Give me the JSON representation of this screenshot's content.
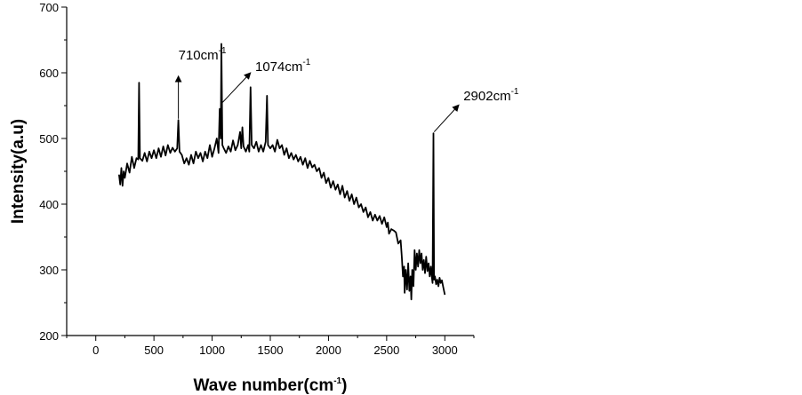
{
  "chart_data": {
    "type": "line",
    "title": "",
    "xlabel": "Wave number(cm",
    "xlabel_sup": "-1",
    "xlabel_tail": ")",
    "ylabel": "Intensity(a.u)",
    "xlim": [
      -250,
      3250
    ],
    "ylim": [
      200,
      700
    ],
    "xticks": [
      0,
      500,
      1000,
      1500,
      2000,
      2500,
      3000
    ],
    "xtick_labels": [
      "0",
      "500",
      "1000",
      "1500",
      "2000",
      "2500",
      "3000"
    ],
    "yticks": [
      200,
      300,
      400,
      500,
      600,
      700
    ],
    "ytick_labels": [
      "200",
      "300",
      "400",
      "500",
      "600",
      "700"
    ],
    "grid": false,
    "legend": "none",
    "line_color": "#000000",
    "series": [
      {
        "points": [
          [
            200,
            445
          ],
          [
            210,
            430
          ],
          [
            220,
            455
          ],
          [
            230,
            428
          ],
          [
            240,
            450
          ],
          [
            250,
            440
          ],
          [
            270,
            462
          ],
          [
            290,
            448
          ],
          [
            310,
            472
          ],
          [
            330,
            455
          ],
          [
            350,
            470
          ],
          [
            365,
            468
          ],
          [
            372,
            585
          ],
          [
            380,
            470
          ],
          [
            400,
            466
          ],
          [
            420,
            478
          ],
          [
            440,
            465
          ],
          [
            460,
            480
          ],
          [
            480,
            470
          ],
          [
            500,
            482
          ],
          [
            520,
            470
          ],
          [
            540,
            485
          ],
          [
            560,
            472
          ],
          [
            580,
            488
          ],
          [
            600,
            474
          ],
          [
            620,
            490
          ],
          [
            640,
            478
          ],
          [
            660,
            486
          ],
          [
            680,
            480
          ],
          [
            700,
            485
          ],
          [
            710,
            528
          ],
          [
            720,
            480
          ],
          [
            740,
            475
          ],
          [
            760,
            462
          ],
          [
            780,
            470
          ],
          [
            800,
            460
          ],
          [
            820,
            475
          ],
          [
            840,
            462
          ],
          [
            860,
            480
          ],
          [
            880,
            470
          ],
          [
            900,
            478
          ],
          [
            920,
            465
          ],
          [
            940,
            480
          ],
          [
            960,
            470
          ],
          [
            980,
            490
          ],
          [
            1000,
            472
          ],
          [
            1020,
            485
          ],
          [
            1040,
            500
          ],
          [
            1055,
            478
          ],
          [
            1065,
            545
          ],
          [
            1074,
            500
          ],
          [
            1080,
            644
          ],
          [
            1088,
            490
          ],
          [
            1100,
            485
          ],
          [
            1120,
            478
          ],
          [
            1140,
            488
          ],
          [
            1160,
            480
          ],
          [
            1180,
            497
          ],
          [
            1200,
            482
          ],
          [
            1220,
            490
          ],
          [
            1240,
            510
          ],
          [
            1250,
            485
          ],
          [
            1260,
            517
          ],
          [
            1270,
            488
          ],
          [
            1290,
            480
          ],
          [
            1310,
            490
          ],
          [
            1320,
            480
          ],
          [
            1330,
            578
          ],
          [
            1340,
            490
          ],
          [
            1360,
            485
          ],
          [
            1380,
            495
          ],
          [
            1400,
            480
          ],
          [
            1420,
            490
          ],
          [
            1440,
            480
          ],
          [
            1460,
            495
          ],
          [
            1472,
            565
          ],
          [
            1480,
            490
          ],
          [
            1500,
            485
          ],
          [
            1520,
            490
          ],
          [
            1540,
            480
          ],
          [
            1560,
            498
          ],
          [
            1580,
            485
          ],
          [
            1600,
            490
          ],
          [
            1620,
            475
          ],
          [
            1640,
            485
          ],
          [
            1660,
            470
          ],
          [
            1680,
            478
          ],
          [
            1700,
            468
          ],
          [
            1720,
            475
          ],
          [
            1740,
            465
          ],
          [
            1760,
            472
          ],
          [
            1780,
            460
          ],
          [
            1800,
            470
          ],
          [
            1820,
            455
          ],
          [
            1840,
            466
          ],
          [
            1860,
            456
          ],
          [
            1880,
            460
          ],
          [
            1900,
            450
          ],
          [
            1920,
            455
          ],
          [
            1940,
            440
          ],
          [
            1960,
            448
          ],
          [
            1980,
            432
          ],
          [
            2000,
            440
          ],
          [
            2020,
            425
          ],
          [
            2040,
            435
          ],
          [
            2060,
            422
          ],
          [
            2080,
            430
          ],
          [
            2100,
            415
          ],
          [
            2120,
            428
          ],
          [
            2140,
            410
          ],
          [
            2160,
            420
          ],
          [
            2180,
            405
          ],
          [
            2200,
            415
          ],
          [
            2220,
            400
          ],
          [
            2240,
            410
          ],
          [
            2260,
            395
          ],
          [
            2280,
            400
          ],
          [
            2300,
            388
          ],
          [
            2320,
            395
          ],
          [
            2340,
            380
          ],
          [
            2360,
            388
          ],
          [
            2380,
            375
          ],
          [
            2400,
            384
          ],
          [
            2420,
            375
          ],
          [
            2440,
            382
          ],
          [
            2460,
            370
          ],
          [
            2480,
            380
          ],
          [
            2500,
            365
          ],
          [
            2510,
            372
          ],
          [
            2520,
            355
          ],
          [
            2540,
            362
          ],
          [
            2560,
            360
          ],
          [
            2580,
            357
          ],
          [
            2600,
            340
          ],
          [
            2620,
            345
          ],
          [
            2630,
            320
          ],
          [
            2640,
            290
          ],
          [
            2650,
            305
          ],
          [
            2655,
            265
          ],
          [
            2665,
            300
          ],
          [
            2675,
            270
          ],
          [
            2685,
            310
          ],
          [
            2695,
            268
          ],
          [
            2705,
            290
          ],
          [
            2712,
            255
          ],
          [
            2720,
            300
          ],
          [
            2730,
            275
          ],
          [
            2740,
            330
          ],
          [
            2750,
            300
          ],
          [
            2760,
            325
          ],
          [
            2770,
            305
          ],
          [
            2780,
            330
          ],
          [
            2790,
            310
          ],
          [
            2800,
            325
          ],
          [
            2810,
            300
          ],
          [
            2820,
            315
          ],
          [
            2830,
            295
          ],
          [
            2840,
            320
          ],
          [
            2850,
            298
          ],
          [
            2860,
            310
          ],
          [
            2870,
            290
          ],
          [
            2880,
            305
          ],
          [
            2888,
            290
          ],
          [
            2895,
            280
          ],
          [
            2902,
            508
          ],
          [
            2908,
            285
          ],
          [
            2915,
            290
          ],
          [
            2925,
            278
          ],
          [
            2935,
            285
          ],
          [
            2945,
            275
          ],
          [
            2955,
            288
          ],
          [
            2965,
            280
          ],
          [
            2975,
            284
          ],
          [
            2985,
            275
          ],
          [
            3000,
            262
          ]
        ]
      }
    ],
    "annotations": [
      {
        "text": "710cm",
        "sup": "-1",
        "x": 710,
        "y": 620,
        "arrow_from": [
          710,
          530
        ],
        "arrow_to": [
          710,
          595
        ]
      },
      {
        "text": "1074cm",
        "sup": "-1",
        "x": 1370,
        "y": 603,
        "arrow_from": [
          1090,
          555
        ],
        "arrow_to": [
          1330,
          600
        ]
      },
      {
        "text": "2902cm",
        "sup": "-1",
        "x": 3160,
        "y": 558,
        "arrow_from": [
          2908,
          510
        ],
        "arrow_to": [
          3120,
          551
        ]
      }
    ]
  }
}
